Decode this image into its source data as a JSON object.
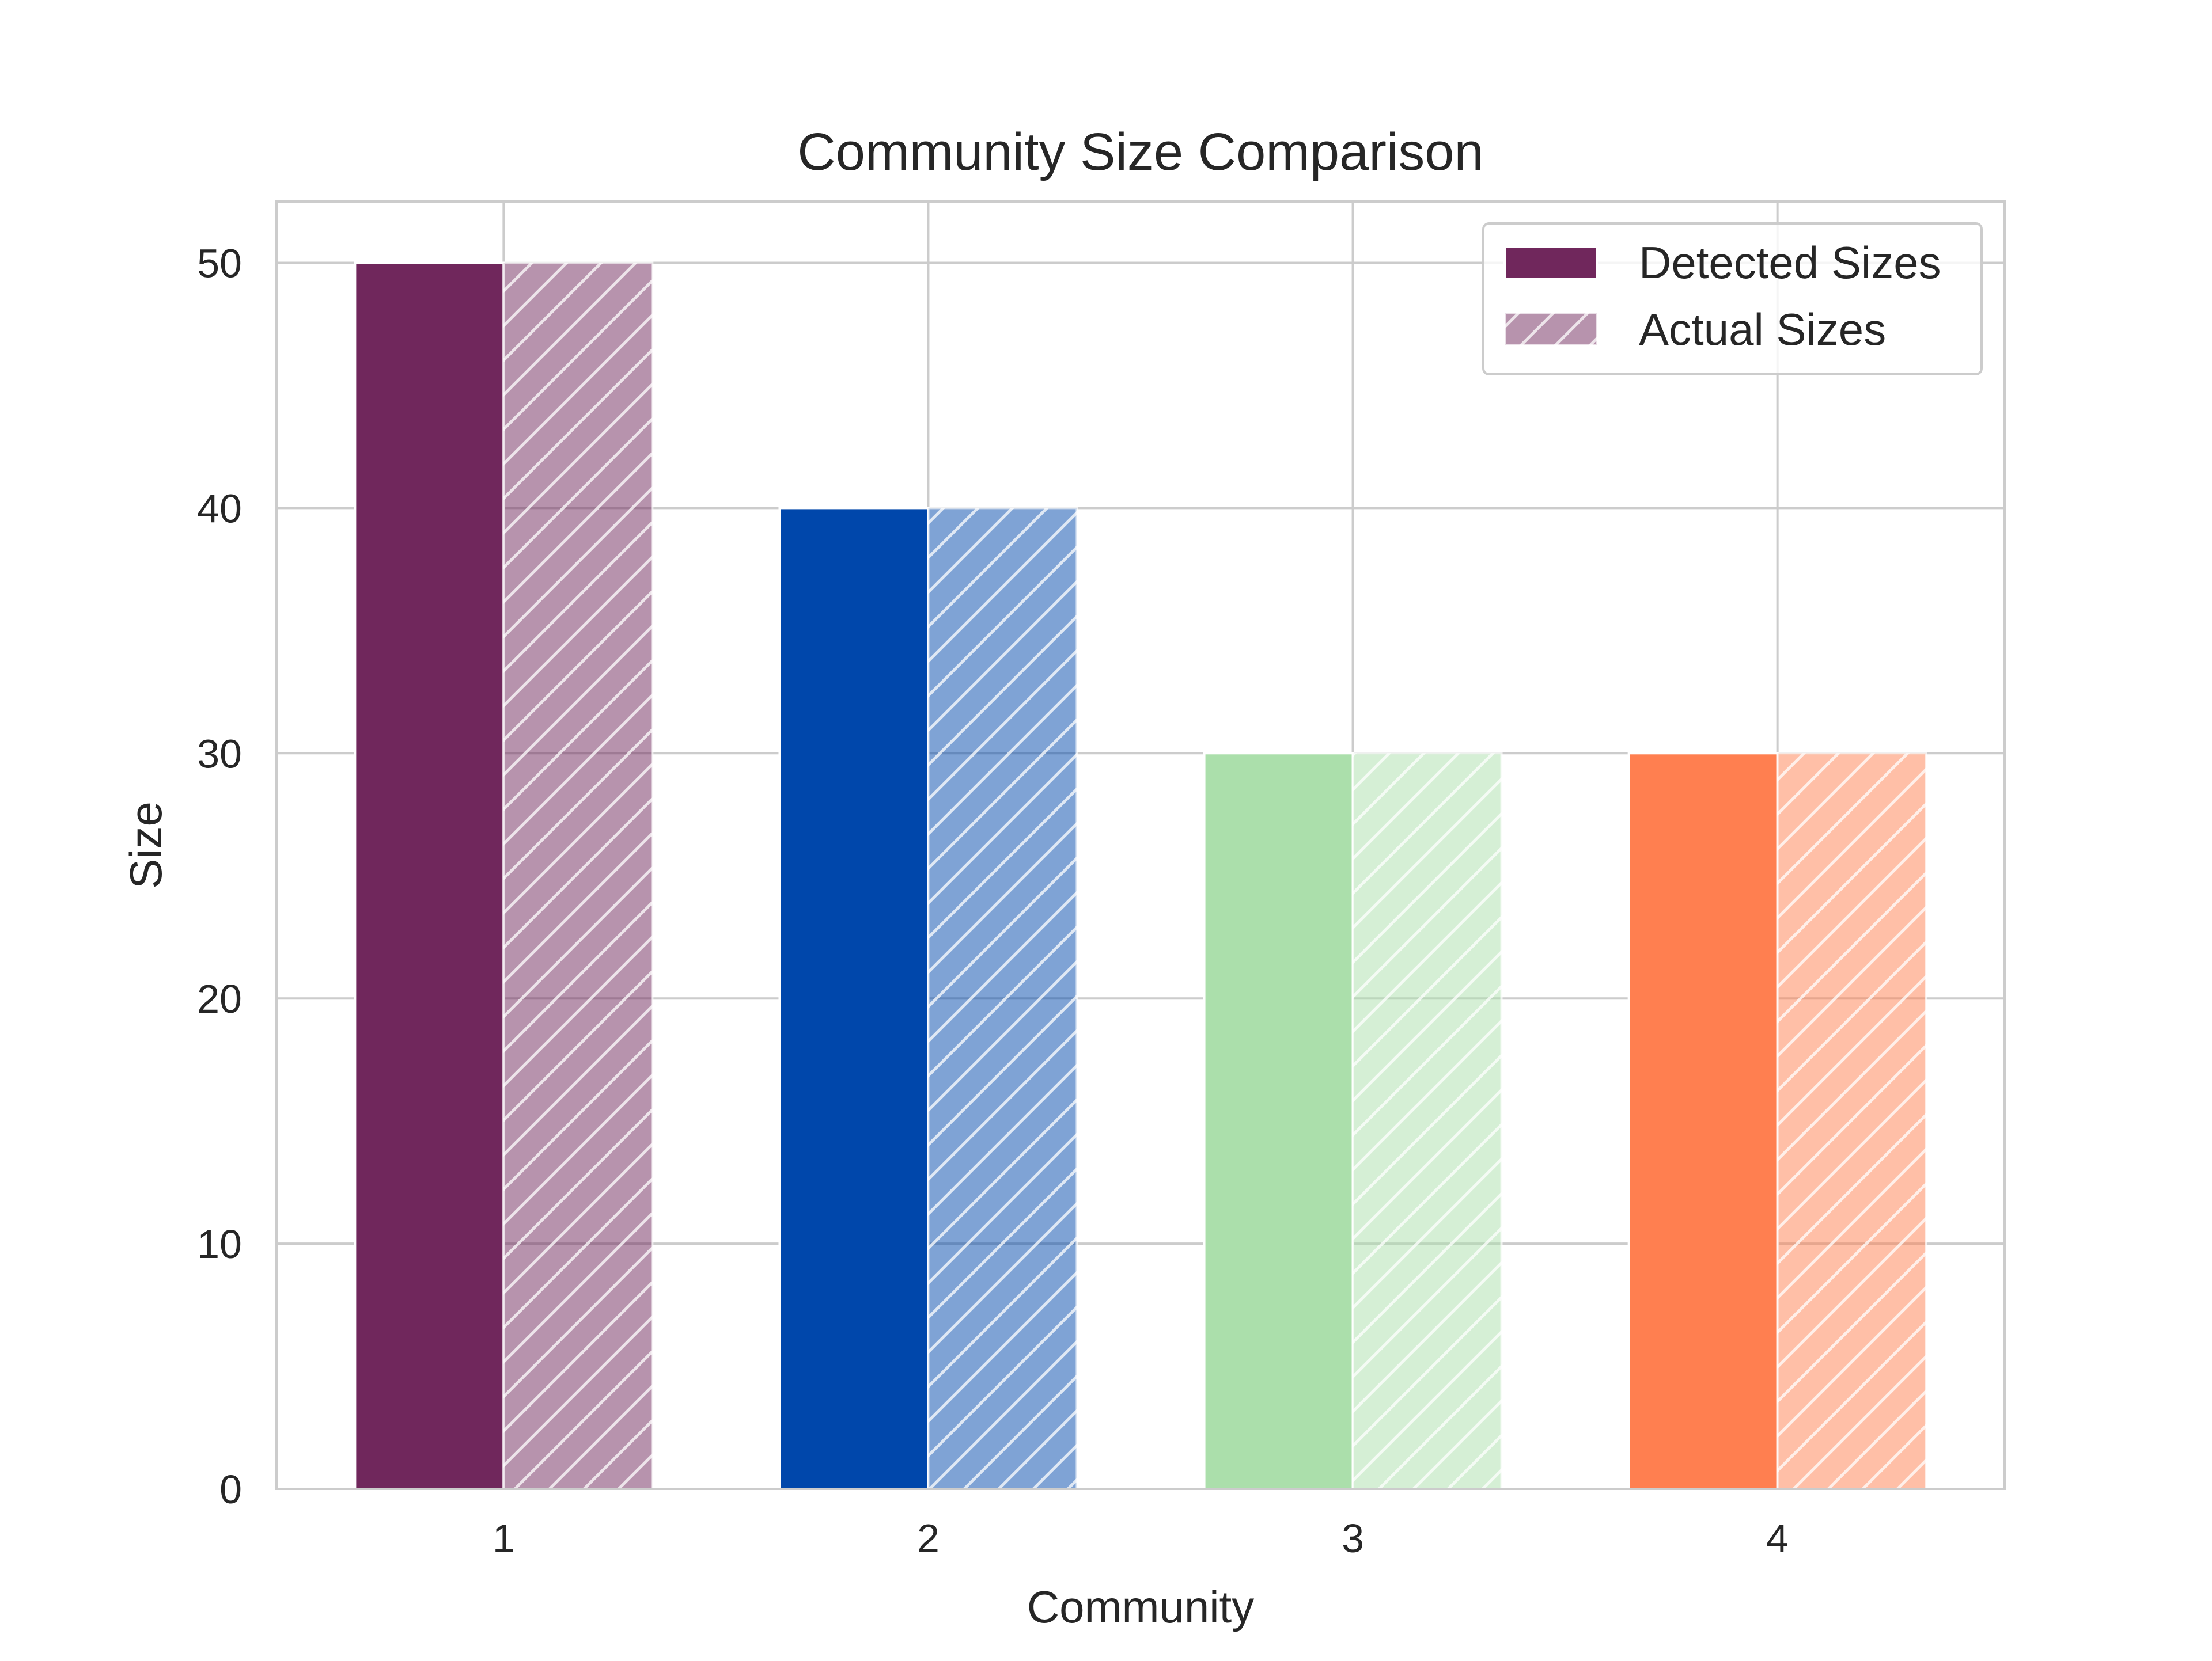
{
  "chart_data": {
    "type": "bar",
    "title": "Community Size Comparison",
    "xlabel": "Community",
    "ylabel": "Size",
    "categories": [
      "1",
      "2",
      "3",
      "4"
    ],
    "ylim": [
      0,
      52.5
    ],
    "yticks": [
      0,
      10,
      20,
      30,
      40,
      50
    ],
    "grid": true,
    "legend_position": "top-right",
    "series": [
      {
        "name": "Detected Sizes",
        "values": [
          50,
          40,
          30,
          30
        ],
        "style": "solid",
        "legend_color": "#70275c"
      },
      {
        "name": "Actual Sizes",
        "values": [
          50,
          40,
          30,
          30
        ],
        "style": "hatched",
        "opacity": 0.5,
        "legend_color": "#70275c"
      }
    ],
    "bar_colors": [
      "#70275c",
      "#0047ab",
      "#abdfab",
      "#ff7f50"
    ]
  }
}
